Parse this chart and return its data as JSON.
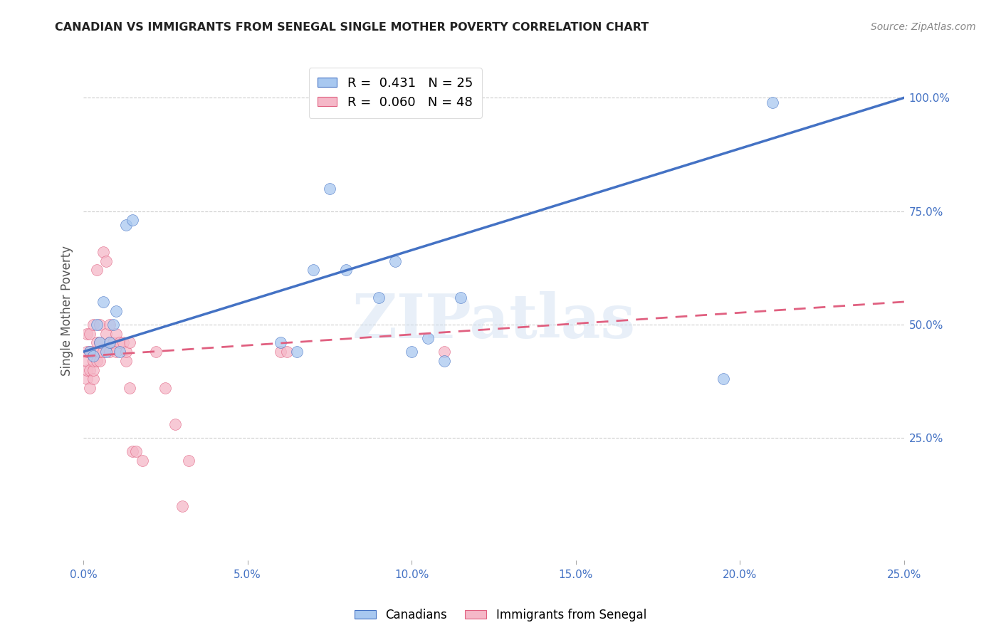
{
  "title": "CANADIAN VS IMMIGRANTS FROM SENEGAL SINGLE MOTHER POVERTY CORRELATION CHART",
  "source": "Source: ZipAtlas.com",
  "ylabel": "Single Mother Poverty",
  "xlim": [
    0,
    0.25
  ],
  "ylim": [
    -0.02,
    1.08
  ],
  "xtick_labels": [
    "0.0%",
    "5.0%",
    "10.0%",
    "15.0%",
    "20.0%",
    "25.0%"
  ],
  "xtick_vals": [
    0,
    0.05,
    0.1,
    0.15,
    0.2,
    0.25
  ],
  "ytick_labels_right": [
    "25.0%",
    "50.0%",
    "75.0%",
    "100.0%"
  ],
  "ytick_vals_right": [
    0.25,
    0.5,
    0.75,
    1.0
  ],
  "legend_canadians": "Canadians",
  "legend_immigrants": "Immigrants from Senegal",
  "R_canadians": "0.431",
  "N_canadians": "25",
  "R_immigrants": "0.060",
  "N_immigrants": "48",
  "canadians_color": "#a8c8f0",
  "immigrants_color": "#f5b8c8",
  "trendline_canadians_color": "#4472c4",
  "trendline_immigrants_color": "#e06080",
  "watermark_text": "ZIPatlas",
  "background_color": "#ffffff",
  "canadians_x": [
    0.002,
    0.003,
    0.004,
    0.005,
    0.006,
    0.007,
    0.008,
    0.009,
    0.01,
    0.011,
    0.013,
    0.015,
    0.06,
    0.065,
    0.07,
    0.075,
    0.08,
    0.09,
    0.095,
    0.1,
    0.105,
    0.11,
    0.115,
    0.195,
    0.21
  ],
  "canadians_y": [
    0.44,
    0.43,
    0.5,
    0.46,
    0.55,
    0.44,
    0.46,
    0.5,
    0.53,
    0.44,
    0.72,
    0.73,
    0.46,
    0.44,
    0.62,
    0.8,
    0.62,
    0.56,
    0.64,
    0.44,
    0.47,
    0.42,
    0.56,
    0.38,
    0.99
  ],
  "immigrants_x": [
    0.001,
    0.001,
    0.001,
    0.001,
    0.001,
    0.002,
    0.002,
    0.002,
    0.002,
    0.003,
    0.003,
    0.003,
    0.003,
    0.003,
    0.004,
    0.004,
    0.004,
    0.005,
    0.005,
    0.005,
    0.005,
    0.006,
    0.006,
    0.007,
    0.007,
    0.008,
    0.008,
    0.008,
    0.009,
    0.01,
    0.01,
    0.011,
    0.012,
    0.013,
    0.013,
    0.014,
    0.014,
    0.015,
    0.016,
    0.018,
    0.022,
    0.025,
    0.028,
    0.03,
    0.032,
    0.06,
    0.062,
    0.11
  ],
  "immigrants_y": [
    0.38,
    0.4,
    0.42,
    0.44,
    0.48,
    0.36,
    0.4,
    0.44,
    0.48,
    0.38,
    0.4,
    0.42,
    0.44,
    0.5,
    0.42,
    0.46,
    0.62,
    0.42,
    0.44,
    0.46,
    0.5,
    0.44,
    0.66,
    0.64,
    0.48,
    0.44,
    0.46,
    0.5,
    0.46,
    0.48,
    0.44,
    0.46,
    0.46,
    0.42,
    0.44,
    0.36,
    0.46,
    0.22,
    0.22,
    0.2,
    0.44,
    0.36,
    0.28,
    0.1,
    0.2,
    0.44,
    0.44,
    0.44
  ],
  "trendline_canadians_x0": 0.0,
  "trendline_canadians_y0": 0.44,
  "trendline_canadians_x1": 0.25,
  "trendline_canadians_y1": 1.0,
  "trendline_immigrants_x0": 0.0,
  "trendline_immigrants_y0": 0.43,
  "trendline_immigrants_x1": 0.25,
  "trendline_immigrants_y1": 0.55
}
